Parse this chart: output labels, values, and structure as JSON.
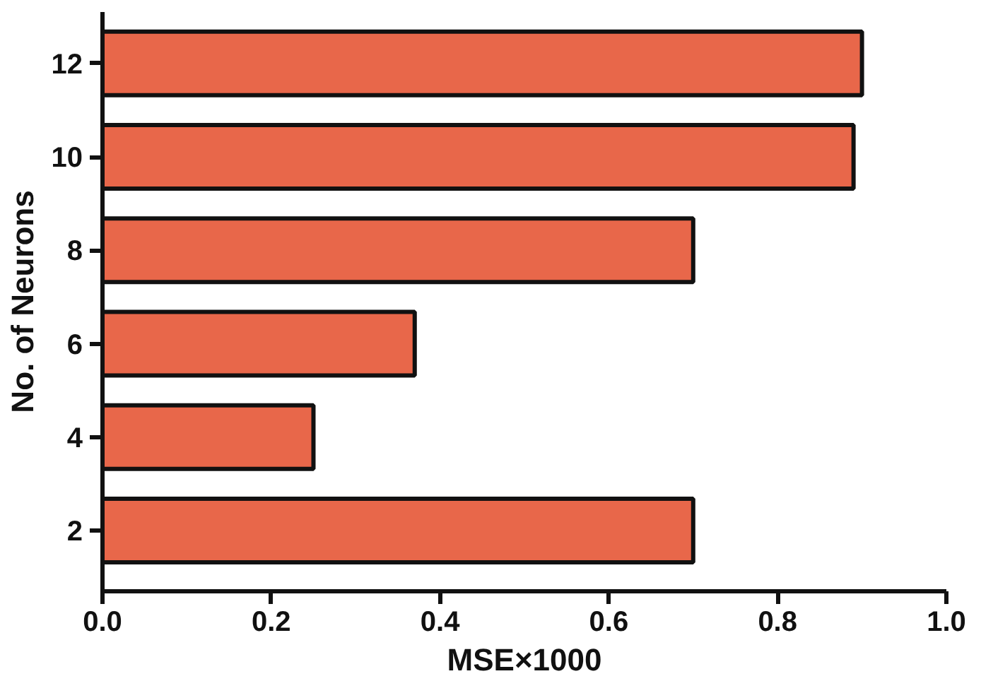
{
  "chart_data": {
    "type": "bar",
    "orientation": "horizontal",
    "xlabel": "MSE×1000",
    "ylabel": "No. of Neurons",
    "categories": [
      "12",
      "10",
      "8",
      "6",
      "4",
      "2"
    ],
    "values": [
      0.9,
      0.89,
      0.7,
      0.37,
      0.25,
      0.7
    ],
    "color": "#e8674a",
    "xlim": [
      0,
      1
    ],
    "xticks": [
      {
        "value": 0,
        "label": "0.0"
      },
      {
        "value": 0.2,
        "label": "0.2"
      },
      {
        "value": 0.4,
        "label": "0.4"
      },
      {
        "value": 0.6,
        "label": "0.6"
      },
      {
        "value": 0.8,
        "label": "0.8"
      },
      {
        "value": 1,
        "label": "1.0"
      }
    ],
    "grid": false
  }
}
